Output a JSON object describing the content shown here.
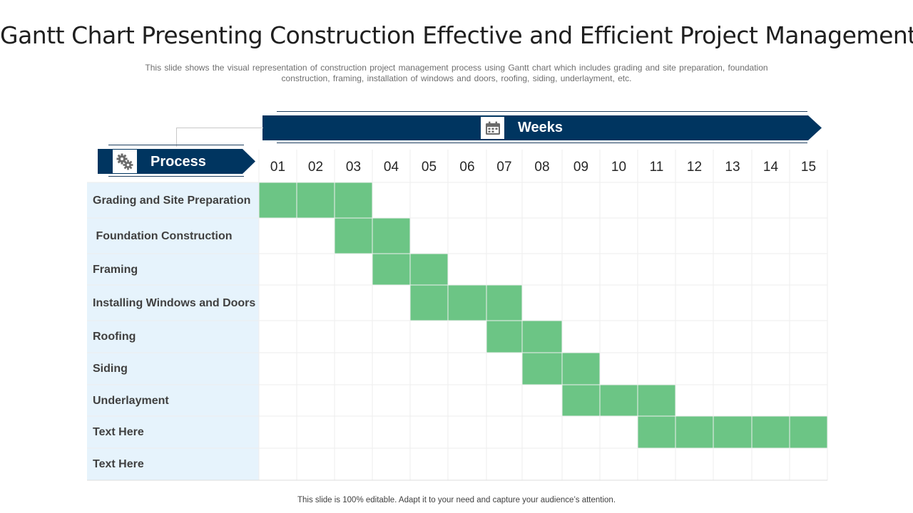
{
  "title": "Gantt Chart Presenting Construction Effective and Efficient Project Management",
  "subtitle": "This slide shows the visual representation of construction project management process using Gantt chart which includes grading and site preparation, foundation construction, framing, installation of windows and doors, roofing, siding, underlayment, etc.",
  "footer": "This slide is 100% editable. Adapt it to your need and capture your audience’s attention.",
  "weeks_label": "Weeks",
  "process_label": "Process",
  "icons": {
    "weeks": "calendar-icon",
    "process": "gears-icon"
  },
  "colors": {
    "banner": "#003560",
    "bar": "#6cc585",
    "process_bg": "#e6f3fc",
    "grid": "#eeeeee"
  },
  "chart_data": {
    "type": "gantt",
    "title": "Gantt Chart Presenting Construction Effective and Efficient Project Management",
    "xlabel": "Weeks",
    "ylabel": "Process",
    "weeks": [
      "01",
      "02",
      "03",
      "04",
      "05",
      "06",
      "07",
      "08",
      "09",
      "10",
      "11",
      "12",
      "13",
      "14",
      "15"
    ],
    "tasks": [
      {
        "name": "Grading and Site Preparation",
        "start": 1,
        "end": 3
      },
      {
        "name": " Foundation Construction",
        "start": 3,
        "end": 4
      },
      {
        "name": "Framing",
        "start": 4,
        "end": 5
      },
      {
        "name": "Installing Windows and Doors",
        "start": 5,
        "end": 7
      },
      {
        "name": "Roofing",
        "start": 7,
        "end": 8
      },
      {
        "name": "Siding",
        "start": 8,
        "end": 9
      },
      {
        "name": "Underlayment",
        "start": 9,
        "end": 11
      },
      {
        "name": "Text Here",
        "start": 11,
        "end": 15
      },
      {
        "name": "Text Here",
        "start": null,
        "end": null
      }
    ]
  }
}
